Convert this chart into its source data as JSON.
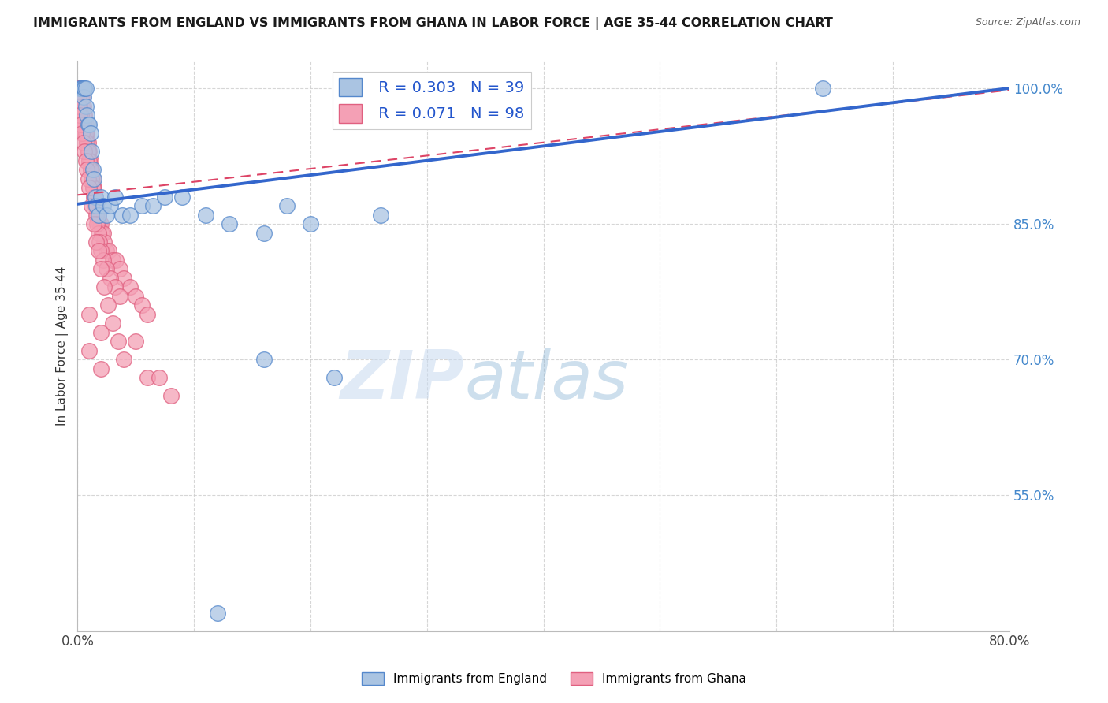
{
  "title": "IMMIGRANTS FROM ENGLAND VS IMMIGRANTS FROM GHANA IN LABOR FORCE | AGE 35-44 CORRELATION CHART",
  "source": "Source: ZipAtlas.com",
  "ylabel": "In Labor Force | Age 35-44",
  "legend_bottom": [
    "Immigrants from England",
    "Immigrants from Ghana"
  ],
  "england_R": 0.303,
  "england_N": 39,
  "ghana_R": 0.071,
  "ghana_N": 98,
  "xlim": [
    0.0,
    0.8
  ],
  "ylim": [
    0.4,
    1.03
  ],
  "yticks": [
    0.55,
    0.7,
    0.85,
    1.0
  ],
  "ytick_labels": [
    "55.0%",
    "70.0%",
    "85.0%",
    "100.0%"
  ],
  "xticks": [
    0.0,
    0.1,
    0.2,
    0.3,
    0.4,
    0.5,
    0.6,
    0.7,
    0.8
  ],
  "xtick_labels": [
    "0.0%",
    "",
    "",
    "",
    "",
    "",
    "",
    "",
    "80.0%"
  ],
  "england_color": "#aac4e2",
  "ghana_color": "#f4a0b5",
  "england_edge_color": "#5588cc",
  "ghana_edge_color": "#e06080",
  "england_line_color": "#3366cc",
  "ghana_line_color": "#dd4466",
  "watermark_zip": "ZIP",
  "watermark_atlas": "atlas",
  "england_scatter_x": [
    0.002,
    0.003,
    0.004,
    0.005,
    0.005,
    0.006,
    0.007,
    0.007,
    0.008,
    0.009,
    0.01,
    0.011,
    0.012,
    0.013,
    0.014,
    0.015,
    0.016,
    0.018,
    0.02,
    0.022,
    0.025,
    0.028,
    0.032,
    0.038,
    0.045,
    0.055,
    0.065,
    0.075,
    0.09,
    0.11,
    0.13,
    0.16,
    0.2,
    0.26,
    0.16,
    0.22,
    0.64,
    0.18,
    0.12
  ],
  "england_scatter_y": [
    1.0,
    1.0,
    1.0,
    1.0,
    0.99,
    1.0,
    1.0,
    0.98,
    0.97,
    0.96,
    0.96,
    0.95,
    0.93,
    0.91,
    0.9,
    0.88,
    0.87,
    0.86,
    0.88,
    0.87,
    0.86,
    0.87,
    0.88,
    0.86,
    0.86,
    0.87,
    0.87,
    0.88,
    0.88,
    0.86,
    0.85,
    0.84,
    0.85,
    0.86,
    0.7,
    0.68,
    1.0,
    0.87,
    0.42
  ],
  "ghana_scatter_x": [
    0.001,
    0.002,
    0.002,
    0.003,
    0.003,
    0.004,
    0.004,
    0.005,
    0.005,
    0.006,
    0.006,
    0.007,
    0.007,
    0.008,
    0.008,
    0.009,
    0.009,
    0.01,
    0.01,
    0.011,
    0.011,
    0.012,
    0.012,
    0.013,
    0.013,
    0.014,
    0.015,
    0.016,
    0.017,
    0.018,
    0.019,
    0.02,
    0.021,
    0.022,
    0.023,
    0.025,
    0.027,
    0.03,
    0.033,
    0.036,
    0.04,
    0.045,
    0.05,
    0.055,
    0.06,
    0.001,
    0.002,
    0.003,
    0.004,
    0.005,
    0.006,
    0.007,
    0.008,
    0.009,
    0.01,
    0.011,
    0.012,
    0.013,
    0.014,
    0.015,
    0.016,
    0.017,
    0.018,
    0.019,
    0.02,
    0.022,
    0.025,
    0.028,
    0.032,
    0.036,
    0.001,
    0.002,
    0.003,
    0.004,
    0.005,
    0.006,
    0.007,
    0.008,
    0.009,
    0.01,
    0.012,
    0.014,
    0.016,
    0.018,
    0.02,
    0.023,
    0.026,
    0.03,
    0.035,
    0.04,
    0.05,
    0.06,
    0.01,
    0.02,
    0.07,
    0.08,
    0.01,
    0.02
  ],
  "ghana_scatter_y": [
    1.0,
    1.0,
    1.0,
    1.0,
    0.99,
    0.99,
    0.98,
    0.98,
    0.97,
    0.97,
    0.96,
    0.96,
    0.95,
    0.95,
    0.94,
    0.94,
    0.93,
    0.93,
    0.92,
    0.92,
    0.91,
    0.91,
    0.9,
    0.9,
    0.89,
    0.89,
    0.88,
    0.87,
    0.86,
    0.86,
    0.85,
    0.85,
    0.84,
    0.84,
    0.83,
    0.82,
    0.82,
    0.81,
    0.81,
    0.8,
    0.79,
    0.78,
    0.77,
    0.76,
    0.75,
    0.99,
    0.98,
    0.97,
    0.96,
    0.96,
    0.95,
    0.95,
    0.94,
    0.93,
    0.92,
    0.91,
    0.9,
    0.89,
    0.88,
    0.87,
    0.86,
    0.85,
    0.84,
    0.83,
    0.82,
    0.81,
    0.8,
    0.79,
    0.78,
    0.77,
    0.98,
    0.97,
    0.96,
    0.95,
    0.94,
    0.93,
    0.92,
    0.91,
    0.9,
    0.89,
    0.87,
    0.85,
    0.83,
    0.82,
    0.8,
    0.78,
    0.76,
    0.74,
    0.72,
    0.7,
    0.72,
    0.68,
    0.75,
    0.73,
    0.68,
    0.66,
    0.71,
    0.69
  ],
  "eng_line_x0": 0.0,
  "eng_line_x1": 0.8,
  "eng_line_y0": 0.872,
  "eng_line_y1": 1.0,
  "gha_line_x0": 0.0,
  "gha_line_x1": 0.8,
  "gha_line_y0": 0.882,
  "gha_line_y1": 0.998
}
